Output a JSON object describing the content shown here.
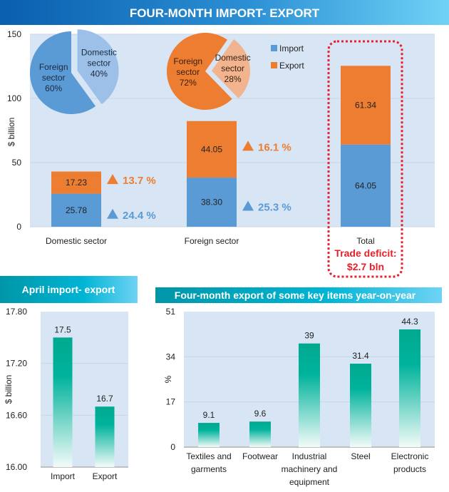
{
  "colors": {
    "import": "#5b9bd5",
    "export": "#ed7d31",
    "teal": "#00a98f",
    "plot_bg": "#d7e5f5",
    "highlight": "#e8202a"
  },
  "chart_data": [
    {
      "type": "bar",
      "stacked": true,
      "title": "FOUR-MONTH IMPORT- EXPORT",
      "ylabel": "$ billion",
      "ylim": [
        0,
        150
      ],
      "yticks": [
        "0",
        "50",
        "100",
        "150"
      ],
      "categories": [
        "Domestic sector",
        "Foreign sector",
        "Total"
      ],
      "series": [
        {
          "name": "Import",
          "values": [
            25.78,
            38.3,
            64.05
          ],
          "labels": [
            "25.78",
            "38.30",
            "64.05"
          ],
          "growth": [
            "24.4 %",
            "25.3 %",
            null
          ]
        },
        {
          "name": "Export",
          "values": [
            17.23,
            44.05,
            61.34
          ],
          "labels": [
            "17.23",
            "44.05",
            "61.34"
          ],
          "growth": [
            "13.7 %",
            "16.1 %",
            null
          ]
        }
      ],
      "legend": {
        "placement": "top-center",
        "items": [
          "Import",
          "Export"
        ]
      },
      "annotation": {
        "line1": "Trade deficit:",
        "line2": "$2.7 bln"
      },
      "grid": true
    },
    {
      "type": "pie",
      "series": "Import",
      "slices": [
        {
          "label": "Foreign sector",
          "value": 60,
          "text": "60%"
        },
        {
          "label": "Domestic sector",
          "value": 40,
          "text": "40%"
        }
      ]
    },
    {
      "type": "pie",
      "series": "Export",
      "slices": [
        {
          "label": "Foreign sector",
          "value": 72,
          "text": "72%"
        },
        {
          "label": "Domestic sector",
          "value": 28,
          "text": "28%"
        }
      ]
    },
    {
      "type": "bar",
      "title": "April import- export",
      "ylabel": "$ billion",
      "ylim": [
        16.0,
        17.8
      ],
      "yticks": [
        "16.00",
        "16.60",
        "17.20",
        "17.80"
      ],
      "categories": [
        "Import",
        "Export"
      ],
      "values": [
        17.5,
        16.7
      ],
      "labels": [
        "17.5",
        "16.7"
      ],
      "grid": true
    },
    {
      "type": "bar",
      "title": "Four-month export of some key items year-on-year",
      "ylabel": "%",
      "ylim": [
        0,
        51
      ],
      "yticks": [
        "0",
        "17",
        "34",
        "51"
      ],
      "categories": [
        [
          "Textiles and",
          "garments"
        ],
        [
          "Footwear"
        ],
        [
          "Industrial",
          "machinery and",
          "equipment"
        ],
        [
          "Steel"
        ],
        [
          "Electronic",
          "products"
        ]
      ],
      "values": [
        9.1,
        9.6,
        39,
        31.4,
        44.3
      ],
      "labels": [
        "9.1",
        "9.6",
        "39",
        "31.4",
        "44.3"
      ],
      "grid": true
    }
  ]
}
